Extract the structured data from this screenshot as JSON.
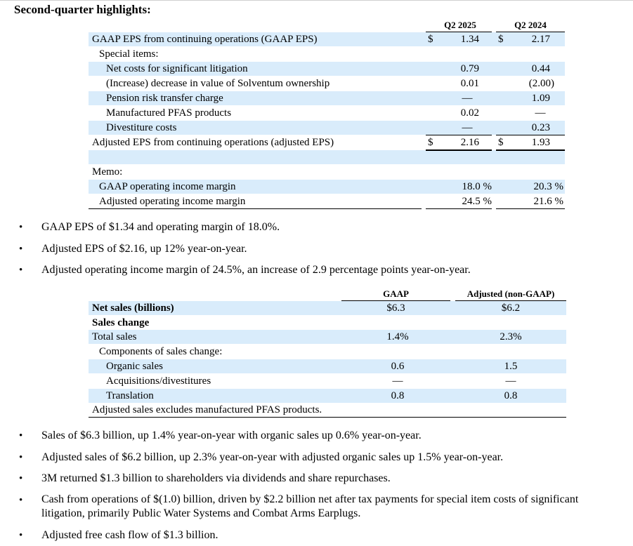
{
  "title": "Second-quarter highlights:",
  "eps_table": {
    "col1_header": "Q2 2025",
    "col2_header": "Q2 2024",
    "currency": "$",
    "rows": [
      {
        "label": "GAAP EPS from continuing operations (GAAP EPS)",
        "v1": "1.34",
        "v2": "2.17"
      },
      {
        "label": "Special items:",
        "v1": "",
        "v2": ""
      },
      {
        "label": "Net costs for significant litigation",
        "v1": "0.79",
        "v2": "0.44"
      },
      {
        "label": "(Increase) decrease in value of Solventum ownership",
        "v1": "0.01",
        "v2": "(2.00)"
      },
      {
        "label": "Pension risk transfer charge",
        "v1": "—",
        "v2": "1.09"
      },
      {
        "label": "Manufactured PFAS products",
        "v1": "0.02",
        "v2": "—"
      },
      {
        "label": "Divestiture costs",
        "v1": "—",
        "v2": "0.23"
      },
      {
        "label": "Adjusted EPS from continuing operations (adjusted EPS)",
        "v1": "2.16",
        "v2": "1.93"
      }
    ],
    "memo_label": "Memo:",
    "memo_rows": [
      {
        "label": "GAAP operating income margin",
        "v1": "18.0 %",
        "v2": "20.3 %"
      },
      {
        "label": "Adjusted operating income margin",
        "v1": "24.5 %",
        "v2": "21.6 %"
      }
    ]
  },
  "bullets_1": [
    "GAAP EPS of $1.34 and operating margin of 18.0%.",
    "Adjusted EPS of $2.16, up 12% year-on-year.",
    "Adjusted operating income margin of 24.5%, an increase of 2.9 percentage points year-on-year."
  ],
  "sales_table": {
    "col1_header": "GAAP",
    "col2_header": "Adjusted (non-GAAP)",
    "rows": [
      {
        "label": "Net sales (billions)",
        "v1": "$6.3",
        "v2": "$6.2"
      },
      {
        "label": "Sales change",
        "v1": "",
        "v2": ""
      },
      {
        "label": "Total sales",
        "v1": "1.4%",
        "v2": "2.3%"
      },
      {
        "label": "Components of sales change:",
        "v1": "",
        "v2": ""
      },
      {
        "label": "Organic sales",
        "v1": "0.6",
        "v2": "1.5"
      },
      {
        "label": "Acquisitions/divestitures",
        "v1": "—",
        "v2": "—"
      },
      {
        "label": "Translation",
        "v1": "0.8",
        "v2": "0.8"
      }
    ],
    "footnote": "Adjusted sales excludes manufactured PFAS products."
  },
  "bullets_2": [
    "Sales of $6.3 billion, up 1.4% year-on-year with organic sales up 0.6% year-on-year.",
    "Adjusted sales of $6.2 billion, up 2.3% year-on-year with adjusted organic sales up 1.5% year-on-year.",
    "3M returned $1.3 billion to shareholders via dividends and share repurchases.",
    "Cash from operations of $(1.0) billion, driven by $2.2 billion net after tax payments for special item costs of significant",
    "litigation, primarily Public Water Systems and Combat Arms Earplugs.",
    "Adjusted free cash flow of $1.3 billion."
  ],
  "bullet_glyph": "•"
}
